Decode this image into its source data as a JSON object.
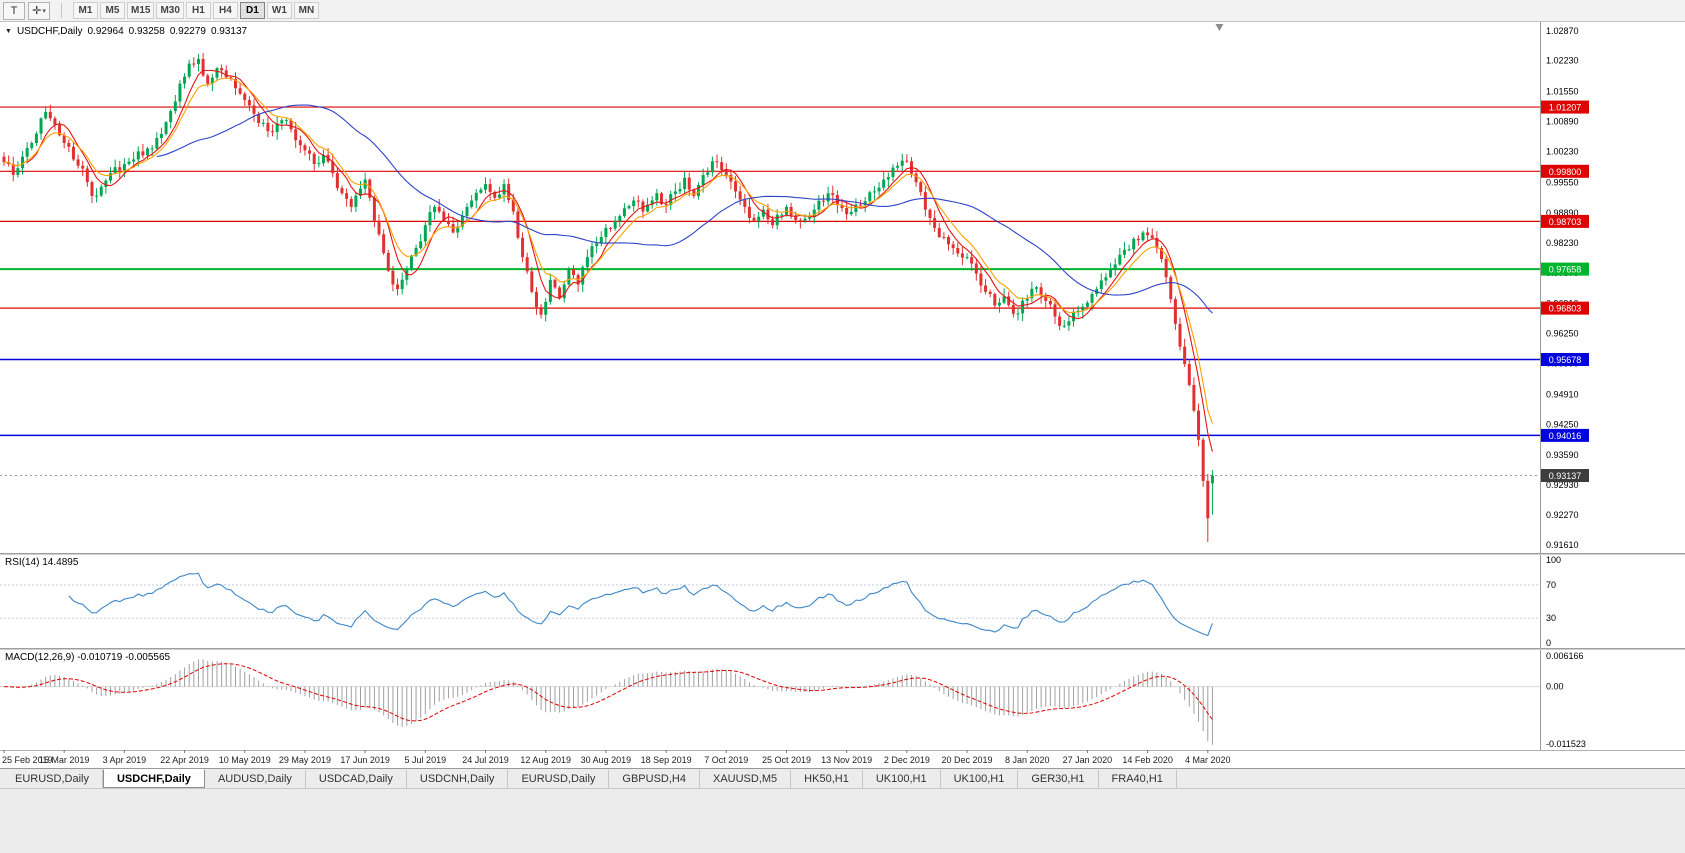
{
  "toolbar": {
    "tools": [
      {
        "name": "text-tool",
        "glyph": "T"
      },
      {
        "name": "cursor-tool",
        "glyph": "✛"
      }
    ],
    "caret": "▾",
    "timeframes": [
      "M1",
      "M5",
      "M15",
      "M30",
      "H1",
      "H4",
      "D1",
      "W1",
      "MN"
    ],
    "active_timeframe": "D1"
  },
  "quote": {
    "collapse_icon": "▼",
    "symbol": "USDCHF,Daily",
    "open": "0.92964",
    "high": "0.93258",
    "low": "0.92279",
    "close": "0.93137"
  },
  "main_axis_labels": [
    "1.02870",
    "1.02230",
    "1.01550",
    "1.00890",
    "1.00230",
    "0.99550",
    "0.98890",
    "0.98230",
    "0.97570",
    "0.96910",
    "0.96250",
    "0.95590",
    "0.94910",
    "0.94250",
    "0.93590",
    "0.92930",
    "0.92270",
    "0.91610"
  ],
  "levels": [
    {
      "price": 1.01207,
      "label": "1.01207",
      "color": "#dd0404",
      "width": 1.2
    },
    {
      "price": 0.998,
      "label": "0.99800",
      "color": "#dd0404",
      "width": 1.2
    },
    {
      "price": 0.98703,
      "label": "0.98703",
      "color": "#dd0404",
      "width": 1.2
    },
    {
      "price": 0.97658,
      "label": "0.97658",
      "color": "#00b42d",
      "width": 2
    },
    {
      "price": 0.96803,
      "label": "0.96803",
      "color": "#dd0404",
      "width": 1.2
    },
    {
      "price": 0.95678,
      "label": "0.95678",
      "color": "#0404dd",
      "width": 1.5
    },
    {
      "price": 0.94016,
      "label": "0.94016",
      "color": "#0404dd",
      "width": 1.5
    }
  ],
  "current_price": {
    "value": 0.93137,
    "label": "0.93137",
    "tag_bg": "#3d3d3d"
  },
  "rsi": {
    "title": "RSI(14) 14.4895",
    "period": 14,
    "value": 14.4895,
    "axis_labels": [
      "100",
      "70",
      "30",
      "0"
    ],
    "levels": [
      70,
      30
    ],
    "color": "#3d87c8"
  },
  "macd": {
    "title": "MACD(12,26,9) -0.010719 -0.005565",
    "fast": 12,
    "slow": 26,
    "signal": 9,
    "values": [
      -0.010719,
      -0.005565
    ],
    "axis_labels": [
      "0.006166",
      "0.00",
      "-0.011523"
    ],
    "axis_values": [
      0.006166,
      0,
      -0.011523
    ],
    "hist_color": "#a0a0a0",
    "signal_color": "#e00000"
  },
  "dates": [
    "25 Feb 2019",
    "15 Mar 2019",
    "3 Apr 2019",
    "22 Apr 2019",
    "10 May 2019",
    "29 May 2019",
    "17 Jun 2019",
    "5 Jul 2019",
    "24 Jul 2019",
    "12 Aug 2019",
    "30 Aug 2019",
    "18 Sep 2019",
    "7 Oct 2019",
    "25 Oct 2019",
    "13 Nov 2019",
    "2 Dec 2019",
    "20 Dec 2019",
    "8 Jan 2020",
    "27 Jan 2020",
    "14 Feb 2020",
    "4 Mar 2020"
  ],
  "tabs": [
    "EURUSD,Daily",
    "USDCHF,Daily",
    "AUDUSD,Daily",
    "USDCAD,Daily",
    "USDCNH,Daily",
    "EURUSD,Daily",
    "GBPUSD,H4",
    "XAUUSD,M5",
    "HK50,H1",
    "UK100,H1",
    "UK100,H1",
    "GER30,H1",
    "FRA40,H1"
  ],
  "active_tab_index": 1,
  "chart_data": {
    "type": "candlestick",
    "symbol": "USDCHF",
    "timeframe": "Daily",
    "title": "USDCHF,Daily",
    "price_range": [
      0.9144,
      1.0307
    ],
    "candle_count": 262,
    "noise": 0.0022,
    "wick": 0.0016,
    "up_color": "#00a651",
    "down_color": "#e03030",
    "last_candle": {
      "open": 0.92964,
      "high": 0.93258,
      "low": 0.92279,
      "close": 0.93137
    },
    "plunge_low": 0.9168,
    "ma": [
      {
        "name": "fast-ma",
        "period": 6,
        "type": "sma",
        "color": "#e41515"
      },
      {
        "name": "mid-ma",
        "period": 9,
        "type": "ema",
        "color": "#ffa000"
      },
      {
        "name": "slow-ma",
        "period": 34,
        "type": "sma",
        "color": "#2d43c8"
      }
    ],
    "anchors": [
      [
        0,
        1.0
      ],
      [
        2,
        0.9972
      ],
      [
        4,
        1.0012
      ],
      [
        6,
        1.0042
      ],
      [
        8,
        1.0096
      ],
      [
        9,
        1.011
      ],
      [
        11,
        1.0082
      ],
      [
        13,
        1.0042
      ],
      [
        15,
        1.0006
      ],
      [
        17,
        0.9986
      ],
      [
        19,
        0.9926
      ],
      [
        21,
        0.9946
      ],
      [
        23,
        0.9976
      ],
      [
        26,
        0.9996
      ],
      [
        28,
        1.0006
      ],
      [
        31,
        1.003
      ],
      [
        34,
        1.0062
      ],
      [
        36,
        1.0112
      ],
      [
        38,
        1.0172
      ],
      [
        40,
        1.0216
      ],
      [
        42,
        1.0226
      ],
      [
        44,
        1.0172
      ],
      [
        46,
        1.0206
      ],
      [
        48,
        1.0186
      ],
      [
        50,
        1.0162
      ],
      [
        52,
        1.0136
      ],
      [
        54,
        1.0106
      ],
      [
        56,
        1.0086
      ],
      [
        58,
        1.0066
      ],
      [
        60,
        1.0092
      ],
      [
        62,
        1.0072
      ],
      [
        65,
        1.0026
      ],
      [
        67,
        0.9996
      ],
      [
        69,
        1.0016
      ],
      [
        71,
        0.9976
      ],
      [
        73,
        0.9932
      ],
      [
        75,
        0.9902
      ],
      [
        77,
        0.9942
      ],
      [
        78,
        0.9962
      ],
      [
        79,
        0.9922
      ],
      [
        81,
        0.9842
      ],
      [
        83,
        0.9762
      ],
      [
        85,
        0.9722
      ],
      [
        87,
        0.9766
      ],
      [
        89,
        0.9812
      ],
      [
        91,
        0.9862
      ],
      [
        93,
        0.9902
      ],
      [
        95,
        0.9872
      ],
      [
        97,
        0.9846
      ],
      [
        99,
        0.9882
      ],
      [
        101,
        0.9916
      ],
      [
        104,
        0.9952
      ],
      [
        106,
        0.9922
      ],
      [
        108,
        0.9952
      ],
      [
        110,
        0.9892
      ],
      [
        112,
        0.9792
      ],
      [
        114,
        0.9716
      ],
      [
        116,
        0.9666
      ],
      [
        118,
        0.9742
      ],
      [
        120,
        0.9702
      ],
      [
        122,
        0.9766
      ],
      [
        124,
        0.9732
      ],
      [
        126,
        0.9792
      ],
      [
        128,
        0.9822
      ],
      [
        130,
        0.9856
      ],
      [
        133,
        0.9882
      ],
      [
        136,
        0.9916
      ],
      [
        138,
        0.9892
      ],
      [
        141,
        0.9932
      ],
      [
        143,
        0.9906
      ],
      [
        145,
        0.9936
      ],
      [
        147,
        0.9966
      ],
      [
        149,
        0.9926
      ],
      [
        151,
        0.9972
      ],
      [
        153,
        1.0002
      ],
      [
        156,
        0.9972
      ],
      [
        158,
        0.9936
      ],
      [
        160,
        0.9902
      ],
      [
        162,
        0.9872
      ],
      [
        164,
        0.9896
      ],
      [
        166,
        0.9862
      ],
      [
        169,
        0.9902
      ],
      [
        172,
        0.9872
      ],
      [
        175,
        0.9896
      ],
      [
        178,
        0.9932
      ],
      [
        180,
        0.9906
      ],
      [
        182,
        0.9886
      ],
      [
        185,
        0.9906
      ],
      [
        188,
        0.9936
      ],
      [
        190,
        0.9962
      ],
      [
        193,
        0.9992
      ],
      [
        195,
        1.0002
      ],
      [
        197,
        0.9956
      ],
      [
        199,
        0.9896
      ],
      [
        201,
        0.9856
      ],
      [
        203,
        0.9836
      ],
      [
        205,
        0.9812
      ],
      [
        208,
        0.9792
      ],
      [
        210,
        0.9756
      ],
      [
        212,
        0.9716
      ],
      [
        214,
        0.9686
      ],
      [
        216,
        0.9706
      ],
      [
        218,
        0.9668
      ],
      [
        221,
        0.9702
      ],
      [
        223,
        0.9726
      ],
      [
        225,
        0.9696
      ],
      [
        227,
        0.9662
      ],
      [
        229,
        0.9642
      ],
      [
        231,
        0.9672
      ],
      [
        234,
        0.9692
      ],
      [
        236,
        0.9722
      ],
      [
        238,
        0.9748
      ],
      [
        240,
        0.9776
      ],
      [
        242,
        0.9808
      ],
      [
        244,
        0.9832
      ],
      [
        246,
        0.9846
      ],
      [
        247,
        0.984
      ],
      [
        249,
        0.9812
      ],
      [
        250,
        0.9788
      ],
      [
        251,
        0.9748
      ],
      [
        252,
        0.97
      ],
      [
        253,
        0.9646
      ],
      [
        254,
        0.9596
      ],
      [
        255,
        0.9558
      ],
      [
        256,
        0.9512
      ],
      [
        257,
        0.9456
      ],
      [
        258,
        0.9392
      ],
      [
        259,
        0.9302
      ],
      [
        260,
        0.922
      ],
      [
        261,
        0.93137
      ]
    ]
  }
}
